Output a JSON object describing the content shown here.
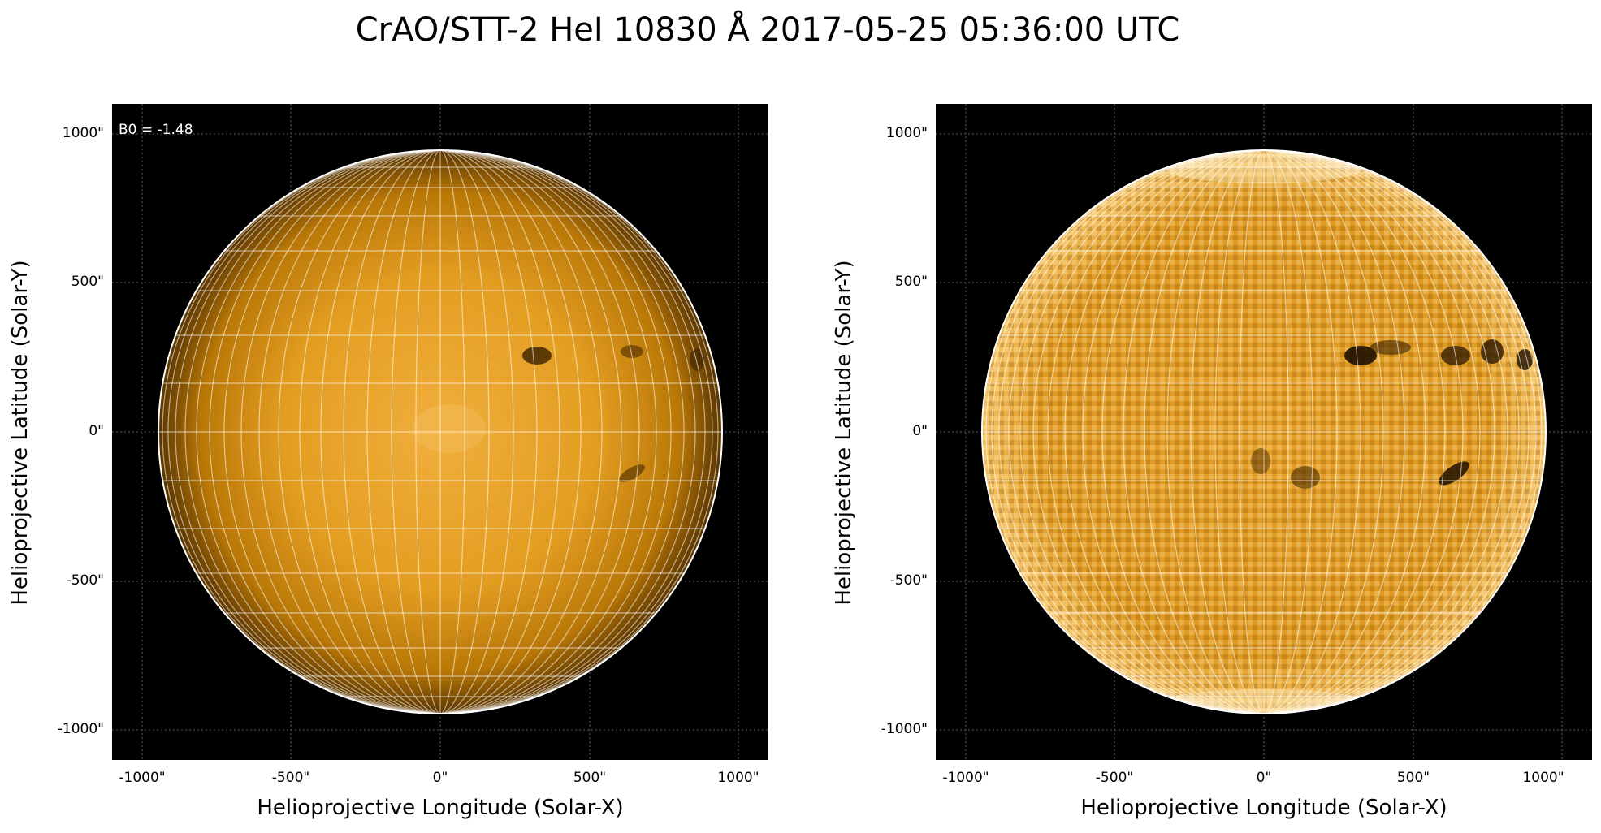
{
  "title": "CrAO/STT-2 HeI 10830 Å 2017-05-25 05:36:00 UTC",
  "annotation": "B0 = -1.48",
  "xlabel": "Helioprojective Longitude (Solar-X)",
  "ylabel": "Helioprojective Latitude (Solar-Y)",
  "xticks": [
    "-1000\"",
    "-500\"",
    "0\"",
    "500\"",
    "1000\""
  ],
  "yticks": [
    "1000\"",
    "500\"",
    "0\"",
    "-500\"",
    "-1000\""
  ],
  "colors": {
    "background": "#000000",
    "sun_dark": "#7a4a00",
    "sun_mid": "#d48e0a",
    "sun_bright": "#f2b64a",
    "grid": "#ffffff"
  }
}
